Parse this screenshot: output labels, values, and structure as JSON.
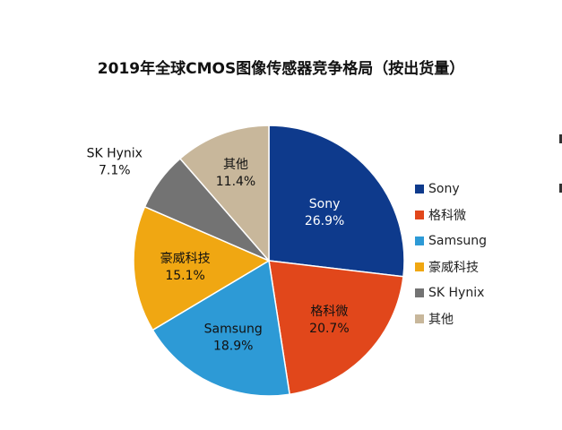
{
  "chart_data": {
    "type": "pie",
    "title": "2019年全球CMOS图像传感器竞争格局（按出货量）",
    "slices": [
      {
        "name": "Sony",
        "label": "Sony",
        "percent_label": "26.9%",
        "value": 26.9,
        "color": "#0e3a8c"
      },
      {
        "name": "格科微",
        "label": "格科微",
        "percent_label": "20.7%",
        "value": 20.7,
        "color": "#e1471b"
      },
      {
        "name": "Samsung",
        "label": "Samsung",
        "percent_label": "18.9%",
        "value": 18.9,
        "color": "#2d9ad6"
      },
      {
        "name": "豪威科技",
        "label": "豪威科技",
        "percent_label": "15.1%",
        "value": 15.1,
        "color": "#f0a712"
      },
      {
        "name": "SK Hynix",
        "label": "SK Hynix",
        "percent_label": "7.1%",
        "value": 7.1,
        "color": "#737373"
      },
      {
        "name": "其他",
        "label": "其他",
        "percent_label": "11.4%",
        "value": 11.4,
        "color": "#c8b79b"
      }
    ],
    "legend_position": "right",
    "start_angle": "12 o'clock",
    "direction": "clockwise"
  }
}
